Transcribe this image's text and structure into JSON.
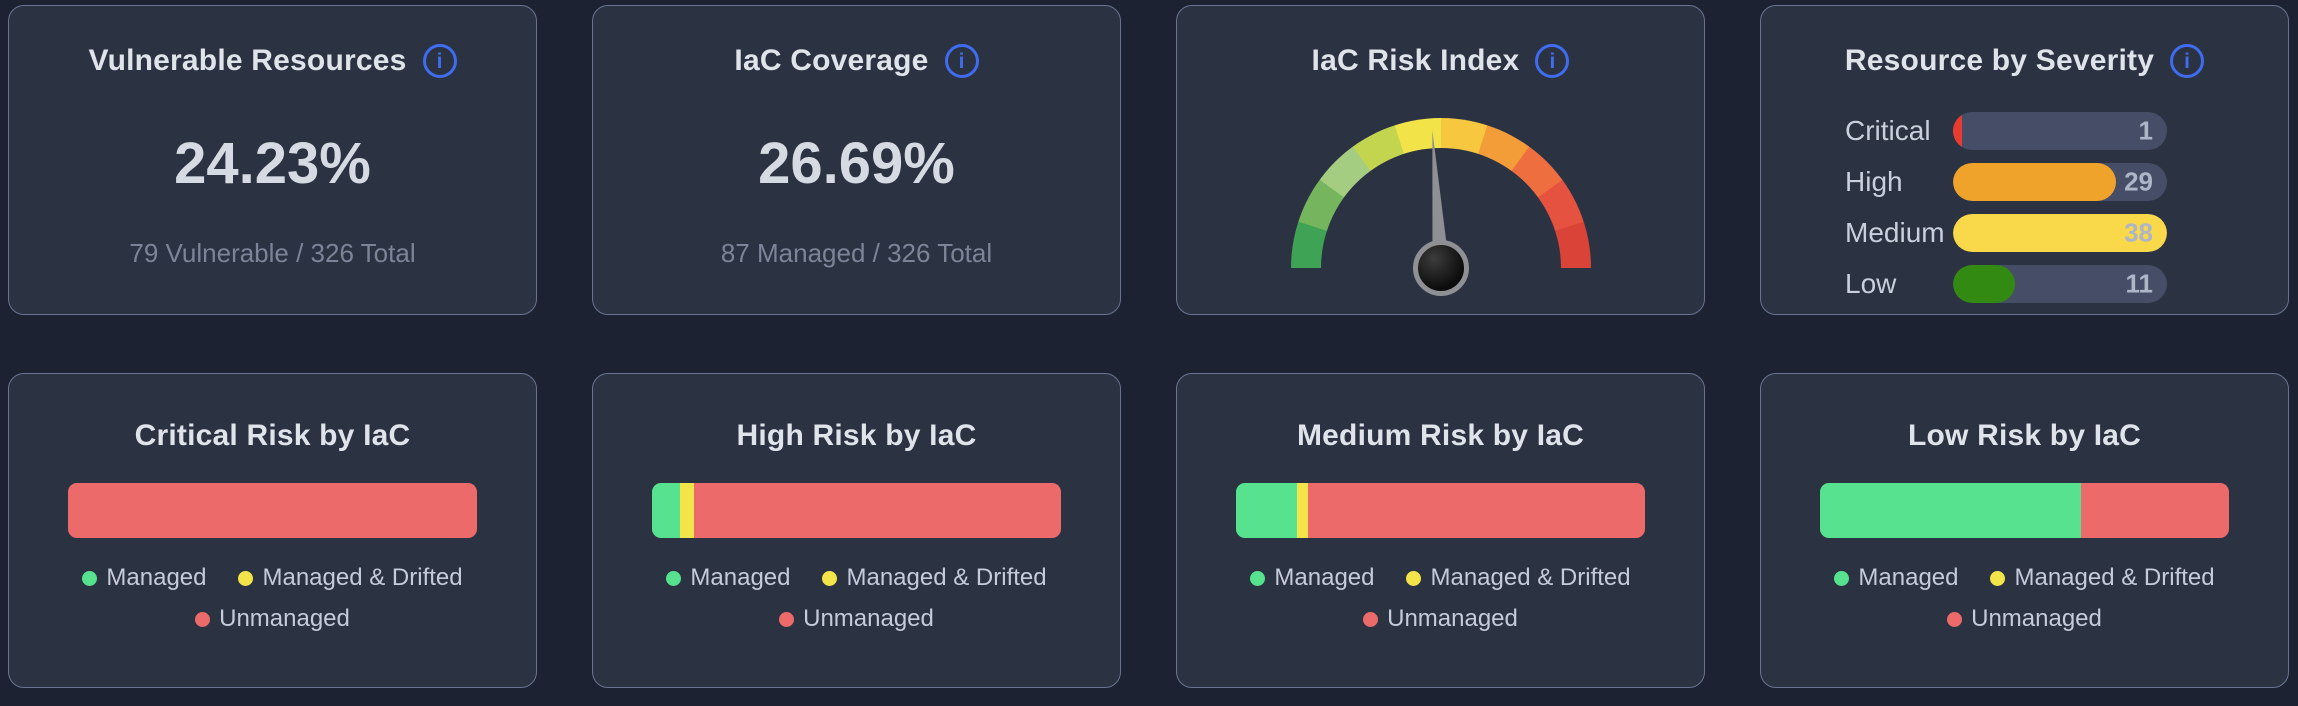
{
  "theme": {
    "page_bg": "#1c2231",
    "card_bg": "#2b3242",
    "card_border": "#6a7492",
    "accent_blue": "#3f6cf0",
    "title_color": "#dfe3ea",
    "value_color": "#d6dae3",
    "subtitle_color": "#7b8498"
  },
  "iac_colors": [
    "#57e28f",
    "#f2e449",
    "#ec6a6a"
  ],
  "legend_labels": [
    "Managed",
    "Managed & Drifted",
    "Unmanaged"
  ],
  "info_icon_glyph": "i",
  "cards": {
    "vulnerable_resources": {
      "title": "Vulnerable Resources",
      "value": "24.23%",
      "subtitle": "79 Vulnerable / 326 Total"
    },
    "iac_coverage": {
      "title": "IaC Coverage",
      "value": "26.69%",
      "subtitle": "87 Managed / 326 Total"
    },
    "iac_risk_index": {
      "title": "IaC Risk Index"
    },
    "resource_by_severity": {
      "title": "Resource by Severity"
    },
    "critical_risk": {
      "title": "Critical Risk by IaC"
    },
    "high_risk": {
      "title": "High Risk by IaC"
    },
    "medium_risk": {
      "title": "Medium Risk by IaC"
    },
    "low_risk": {
      "title": "Low Risk by IaC"
    }
  },
  "chart_data": [
    {
      "id": "iac_risk_gauge",
      "type": "gauge",
      "title": "IaC Risk Index",
      "min": 0,
      "max": 100,
      "needle_pct": 48,
      "segment_colors": [
        "#3fa355",
        "#74b55e",
        "#a4cd82",
        "#c3d44f",
        "#f2e348",
        "#f6c73f",
        "#f39d39",
        "#ee6e3f",
        "#e5523f",
        "#da4337"
      ]
    },
    {
      "id": "severity",
      "type": "bar",
      "title": "Resource by Severity",
      "categories": [
        "Critical",
        "High",
        "Medium",
        "Low"
      ],
      "values": [
        1,
        29,
        38,
        11
      ],
      "max": 38,
      "colors": [
        "#e73b30",
        "#efa32b",
        "#f9d84a",
        "#338a12"
      ],
      "track_color": "#454e66"
    },
    {
      "id": "critical_risk",
      "type": "stacked_bar",
      "title": "Critical Risk by IaC",
      "series": [
        {
          "name": "Managed",
          "pct": 0
        },
        {
          "name": "Managed & Drifted",
          "pct": 0
        },
        {
          "name": "Unmanaged",
          "pct": 100
        }
      ]
    },
    {
      "id": "high_risk",
      "type": "stacked_bar",
      "title": "High Risk by IaC",
      "series": [
        {
          "name": "Managed",
          "pct": 6.9
        },
        {
          "name": "Managed & Drifted",
          "pct": 3.4
        },
        {
          "name": "Unmanaged",
          "pct": 89.7
        }
      ]
    },
    {
      "id": "medium_risk",
      "type": "stacked_bar",
      "title": "Medium Risk by IaC",
      "series": [
        {
          "name": "Managed",
          "pct": 15.0
        },
        {
          "name": "Managed & Drifted",
          "pct": 2.7
        },
        {
          "name": "Unmanaged",
          "pct": 82.3
        }
      ]
    },
    {
      "id": "low_risk",
      "type": "stacked_bar",
      "title": "Low Risk by IaC",
      "series": [
        {
          "name": "Managed",
          "pct": 63.7
        },
        {
          "name": "Managed & Drifted",
          "pct": 0
        },
        {
          "name": "Unmanaged",
          "pct": 36.3
        }
      ]
    }
  ]
}
